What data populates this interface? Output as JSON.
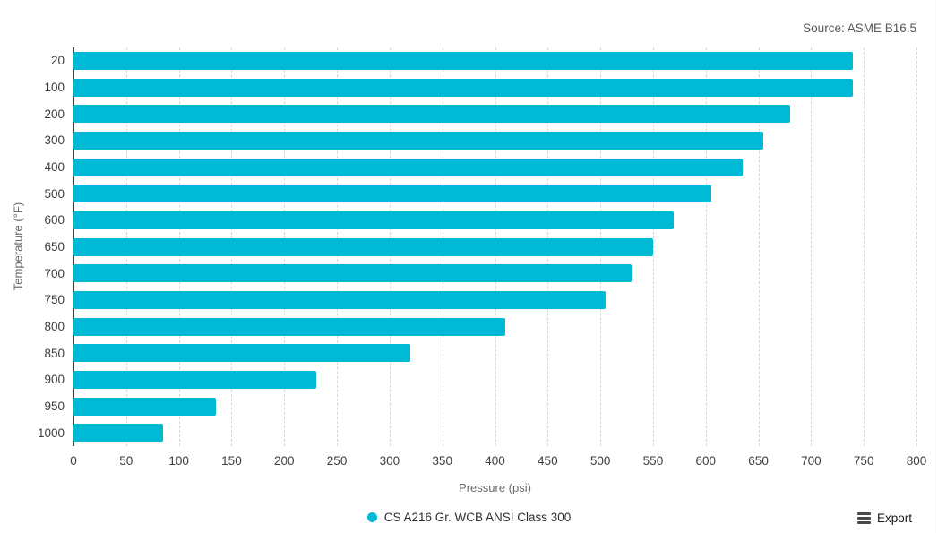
{
  "source_note": "Source: ASME B16.5",
  "legend": {
    "label": "CS A216 Gr. WCB ANSI Class 300",
    "marker_color": "#00b9d4"
  },
  "export": {
    "label": "Export"
  },
  "chart_data": {
    "type": "bar",
    "orientation": "horizontal",
    "title": "",
    "xlabel": "Pressure (psi)",
    "ylabel": "Temperature (°F)",
    "categories": [
      "20",
      "100",
      "200",
      "300",
      "400",
      "500",
      "600",
      "650",
      "700",
      "750",
      "800",
      "850",
      "900",
      "950",
      "1000"
    ],
    "series": [
      {
        "name": "CS A216 Gr. WCB ANSI Class 300",
        "values": [
          740,
          740,
          680,
          655,
          635,
          605,
          570,
          550,
          530,
          505,
          410,
          320,
          230,
          135,
          85
        ]
      }
    ],
    "xlim": [
      0,
      800
    ],
    "x_ticks": [
      0,
      50,
      100,
      150,
      200,
      250,
      300,
      350,
      400,
      450,
      500,
      550,
      600,
      650,
      700,
      750,
      800
    ],
    "grid": "vertical-dashed",
    "legend_position": "bottom",
    "bar_color": "#00b9d4",
    "gridline_color": "#d7d7d7",
    "axis_line_color": "#3f3f3f"
  }
}
